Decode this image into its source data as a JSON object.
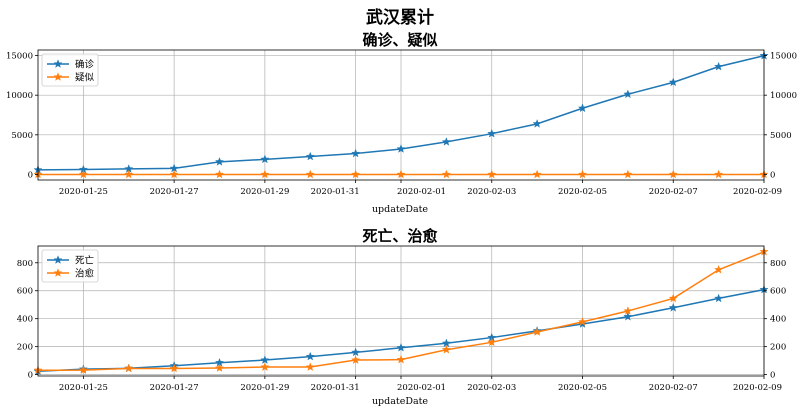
{
  "suptitle": "武汉累计",
  "colors": {
    "series1": "#1f77b4",
    "series2": "#ff7f0e",
    "grid": "#b0b0b0"
  },
  "chart_data": [
    {
      "type": "line",
      "title": "确诊、疑似",
      "xlabel": "updateDate",
      "ylabel": "",
      "x": [
        "2020-01-24",
        "2020-01-25",
        "2020-01-26",
        "2020-01-27",
        "2020-01-28",
        "2020-01-29",
        "2020-01-30",
        "2020-01-31",
        "2020-02-01",
        "2020-02-02",
        "2020-02-03",
        "2020-02-04",
        "2020-02-05",
        "2020-02-06",
        "2020-02-07",
        "2020-02-08",
        "2020-02-09"
      ],
      "xticks": [
        "2020-01-25",
        "2020-01-27",
        "2020-01-29",
        "2020-01-31",
        "2020-02-01",
        "2020-02-03",
        "2020-02-05",
        "2020-02-07",
        "2020-02-09"
      ],
      "ylim": [
        -700,
        15700
      ],
      "yticks": [
        0,
        5000,
        10000,
        15000
      ],
      "yticks_right": [
        0,
        5000,
        10000,
        15000
      ],
      "grid": true,
      "legend_position": "top-left",
      "series": [
        {
          "name": "确诊",
          "marker": "star",
          "values": [
            572,
            618,
            698,
            761,
            1590,
            1905,
            2261,
            2639,
            3215,
            4109,
            5142,
            6384,
            8351,
            10117,
            11618,
            13603,
            14982
          ]
        },
        {
          "name": "疑似",
          "marker": "star",
          "values": [
            0,
            0,
            0,
            0,
            0,
            0,
            0,
            0,
            0,
            0,
            0,
            0,
            0,
            0,
            0,
            0,
            0
          ]
        }
      ]
    },
    {
      "type": "line",
      "title": "死亡、治愈",
      "xlabel": "updateDate",
      "ylabel": "",
      "x": [
        "2020-01-24",
        "2020-01-25",
        "2020-01-26",
        "2020-01-27",
        "2020-01-28",
        "2020-01-29",
        "2020-01-30",
        "2020-01-31",
        "2020-02-01",
        "2020-02-02",
        "2020-02-03",
        "2020-02-04",
        "2020-02-05",
        "2020-02-06",
        "2020-02-07",
        "2020-02-08",
        "2020-02-09"
      ],
      "xticks": [
        "2020-01-25",
        "2020-01-27",
        "2020-01-29",
        "2020-01-31",
        "2020-02-01",
        "2020-02-03",
        "2020-02-05",
        "2020-02-07",
        "2020-02-09"
      ],
      "ylim": [
        -10,
        920
      ],
      "yticks": [
        0,
        200,
        400,
        600,
        800
      ],
      "yticks_right": [
        0,
        200,
        400,
        600,
        800
      ],
      "grid": true,
      "legend_position": "top-left",
      "series": [
        {
          "name": "死亡",
          "marker": "star",
          "values": [
            24,
            39,
            45,
            63,
            85,
            104,
            129,
            159,
            192,
            224,
            265,
            313,
            362,
            414,
            478,
            545,
            608
          ]
        },
        {
          "name": "治愈",
          "marker": "star",
          "values": [
            31,
            32,
            44,
            44,
            47,
            54,
            54,
            104,
            107,
            178,
            231,
            305,
            377,
            455,
            545,
            750,
            879
          ]
        }
      ]
    }
  ]
}
